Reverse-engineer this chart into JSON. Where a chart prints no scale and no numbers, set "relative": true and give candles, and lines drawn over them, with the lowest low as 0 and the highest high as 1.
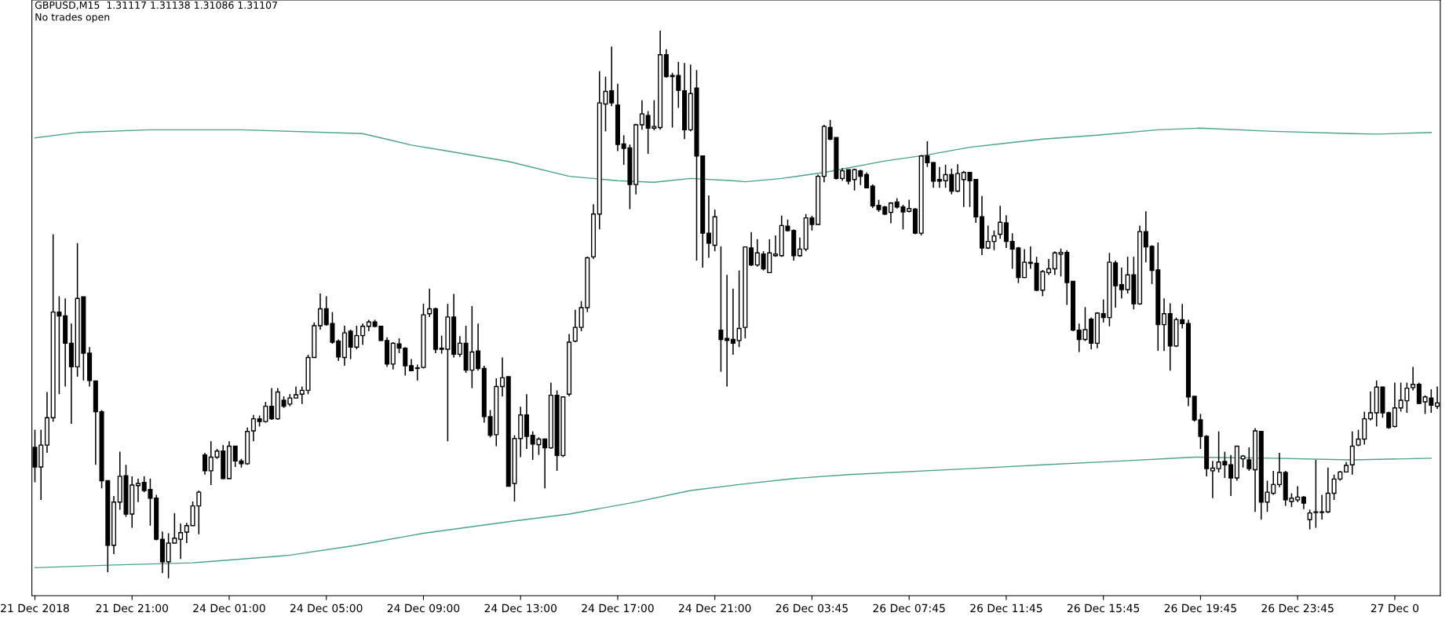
{
  "chart_data": {
    "type": "candlestick",
    "title": "GBPUSD,M15  1.31117 1.31138 1.31086 1.31107",
    "annotations": [
      "No trades open"
    ],
    "relative": true,
    "categories": [
      "21 Dec 2018",
      null,
      null,
      null,
      null,
      null,
      null,
      null,
      null,
      null,
      null,
      null,
      null,
      null,
      null,
      null,
      "21 Dec 21:00",
      null,
      null,
      null,
      null,
      null,
      null,
      null,
      null,
      null,
      null,
      null,
      null,
      null,
      null,
      null,
      "24 Dec 01:00",
      null,
      null,
      null,
      null,
      null,
      null,
      null,
      null,
      null,
      null,
      null,
      null,
      null,
      null,
      null,
      "24 Dec 05:00",
      null,
      null,
      null,
      null,
      null,
      null,
      null,
      null,
      null,
      null,
      null,
      null,
      null,
      null,
      null,
      "24 Dec 09:00",
      null,
      null,
      null,
      null,
      null,
      null,
      null,
      null,
      null,
      null,
      null,
      null,
      null,
      null,
      null,
      "24 Dec 13:00",
      null,
      null,
      null,
      null,
      null,
      null,
      null,
      null,
      null,
      null,
      null,
      null,
      null,
      null,
      null,
      "24 Dec 17:00",
      null,
      null,
      null,
      null,
      null,
      null,
      null,
      null,
      null,
      null,
      null,
      null,
      null,
      null,
      null,
      "24 Dec 21:00",
      null,
      null,
      null,
      null,
      null,
      null,
      null,
      null,
      null,
      null,
      null,
      null,
      null,
      null,
      null,
      "26 Dec 03:45",
      null,
      null,
      null,
      null,
      null,
      null,
      null,
      null,
      null,
      null,
      null,
      null,
      null,
      null,
      null,
      "26 Dec 07:45",
      null,
      null,
      null,
      null,
      null,
      null,
      null,
      null,
      null,
      null,
      null,
      null,
      null,
      null,
      null,
      "26 Dec 11:45",
      null,
      null,
      null,
      null,
      null,
      null,
      null,
      null,
      null,
      null,
      null,
      null,
      null,
      null,
      null,
      "26 Dec 15:45",
      null,
      null,
      null,
      null,
      null,
      null,
      null,
      null,
      null,
      null,
      null,
      null,
      null,
      null,
      null,
      "26 Dec 19:45",
      null,
      null,
      null,
      null,
      null,
      null,
      null,
      null,
      null,
      null,
      null,
      null,
      null,
      null,
      null,
      "26 Dec 23:45",
      null,
      null,
      null,
      null,
      null,
      null,
      null,
      null,
      null,
      null,
      null,
      null,
      null,
      null,
      null,
      "27 Dec 0",
      null,
      null,
      null,
      null,
      null,
      null,
      null
    ],
    "ohlc": [
      [
        0.239,
        0.271,
        0.175,
        0.203
      ],
      [
        0.203,
        0.271,
        0.143,
        0.243
      ],
      [
        0.243,
        0.34,
        0.229,
        0.293
      ],
      [
        0.293,
        0.628,
        0.286,
        0.486
      ],
      [
        0.486,
        0.515,
        0.336,
        0.479
      ],
      [
        0.479,
        0.511,
        0.35,
        0.429
      ],
      [
        0.429,
        0.465,
        0.282,
        0.386
      ],
      [
        0.386,
        0.612,
        0.368,
        0.511
      ],
      [
        0.514,
        0.514,
        0.361,
        0.411
      ],
      [
        0.411,
        0.422,
        0.35,
        0.361
      ],
      [
        0.36,
        0.36,
        0.207,
        0.304
      ],
      [
        0.304,
        0.307,
        0.164,
        0.178
      ],
      [
        0.178,
        0.178,
        0.011,
        0.06
      ],
      [
        0.06,
        0.15,
        0.044,
        0.139
      ],
      [
        0.139,
        0.231,
        0.125,
        0.186
      ],
      [
        0.187,
        0.207,
        0.112,
        0.117
      ],
      [
        0.117,
        0.186,
        0.092,
        0.17
      ],
      [
        0.169,
        0.182,
        0.139,
        0.173
      ],
      [
        0.175,
        0.186,
        0.157,
        0.16
      ],
      [
        0.162,
        0.182,
        0.096,
        0.146
      ],
      [
        0.146,
        0.152,
        0.069,
        0.071
      ],
      [
        0.071,
        0.085,
        0.009,
        0.03
      ],
      [
        0.03,
        0.082,
        0,
        0.064
      ],
      [
        0.064,
        0.119,
        0.064,
        0.073
      ],
      [
        0.071,
        0.1,
        0.035,
        0.083
      ],
      [
        0.084,
        0.101,
        0.064,
        0.096
      ],
      [
        0.096,
        0.14,
        0.096,
        0.132
      ],
      [
        0.132,
        0.16,
        0.08,
        0.157
      ],
      [
        0.225,
        0.229,
        0.189,
        0.196
      ],
      [
        0.196,
        0.25,
        0.17,
        0.221
      ],
      [
        0.221,
        0.236,
        0.218,
        0.232
      ],
      [
        0.232,
        0.243,
        0.181,
        0.182
      ],
      [
        0.182,
        0.25,
        0.181,
        0.241
      ],
      [
        0.241,
        0.241,
        0.203,
        0.214
      ],
      [
        0.214,
        0.218,
        0.202,
        0.209
      ],
      [
        0.209,
        0.275,
        0.207,
        0.268
      ],
      [
        0.269,
        0.298,
        0.25,
        0.291
      ],
      [
        0.291,
        0.297,
        0.277,
        0.286
      ],
      [
        0.286,
        0.322,
        0.284,
        0.314
      ],
      [
        0.314,
        0.347,
        0.289,
        0.291
      ],
      [
        0.291,
        0.347,
        0.289,
        0.34
      ],
      [
        0.325,
        0.332,
        0.311,
        0.314
      ],
      [
        0.318,
        0.336,
        0.314,
        0.329
      ],
      [
        0.329,
        0.35,
        0.329,
        0.335
      ],
      [
        0.336,
        0.35,
        0.318,
        0.343
      ],
      [
        0.343,
        0.408,
        0.336,
        0.403
      ],
      [
        0.403,
        0.467,
        0.403,
        0.461
      ],
      [
        0.461,
        0.52,
        0.454,
        0.492
      ],
      [
        0.492,
        0.515,
        0.461,
        0.463
      ],
      [
        0.465,
        0.486,
        0.428,
        0.431
      ],
      [
        0.433,
        0.436,
        0.397,
        0.404
      ],
      [
        0.403,
        0.461,
        0.388,
        0.448
      ],
      [
        0.451,
        0.454,
        0.4,
        0.422
      ],
      [
        0.422,
        0.461,
        0.418,
        0.443
      ],
      [
        0.443,
        0.465,
        0.426,
        0.46
      ],
      [
        0.46,
        0.472,
        0.451,
        0.468
      ],
      [
        0.468,
        0.472,
        0.458,
        0.46
      ],
      [
        0.46,
        0.461,
        0.433,
        0.434
      ],
      [
        0.434,
        0.44,
        0.386,
        0.391
      ],
      [
        0.391,
        0.431,
        0.381,
        0.429
      ],
      [
        0.428,
        0.438,
        0.411,
        0.42
      ],
      [
        0.42,
        0.422,
        0.37,
        0.388
      ],
      [
        0.388,
        0.4,
        0.379,
        0.379
      ],
      [
        0.383,
        0.39,
        0.361,
        0.384
      ],
      [
        0.385,
        0.501,
        0.383,
        0.481
      ],
      [
        0.483,
        0.529,
        0.477,
        0.492
      ],
      [
        0.492,
        0.494,
        0.411,
        0.418
      ],
      [
        0.418,
        0.443,
        0.41,
        0.42
      ],
      [
        0.418,
        0.501,
        0.25,
        0.477
      ],
      [
        0.477,
        0.519,
        0.403,
        0.409
      ],
      [
        0.409,
        0.442,
        0.404,
        0.429
      ],
      [
        0.429,
        0.461,
        0.375,
        0.38
      ],
      [
        0.38,
        0.497,
        0.347,
        0.413
      ],
      [
        0.415,
        0.465,
        0.379,
        0.383
      ],
      [
        0.383,
        0.388,
        0.284,
        0.295
      ],
      [
        0.295,
        0.307,
        0.257,
        0.261
      ],
      [
        0.262,
        0.365,
        0.241,
        0.35
      ],
      [
        0.35,
        0.403,
        0.332,
        0.366
      ],
      [
        0.368,
        0.368,
        0.168,
        0.168
      ],
      [
        0.173,
        0.261,
        0.14,
        0.255
      ],
      [
        0.255,
        0.313,
        0.221,
        0.298
      ],
      [
        0.298,
        0.336,
        0.236,
        0.259
      ],
      [
        0.261,
        0.268,
        0.216,
        0.245
      ],
      [
        0.244,
        0.257,
        0.225,
        0.254
      ],
      [
        0.254,
        0.255,
        0.164,
        0.238
      ],
      [
        0.238,
        0.357,
        0.236,
        0.334
      ],
      [
        0.334,
        0.343,
        0.196,
        0.224
      ],
      [
        0.224,
        0.332,
        0.221,
        0.331
      ],
      [
        0.336,
        0.446,
        0.332,
        0.431
      ],
      [
        0.433,
        0.49,
        0.431,
        0.458
      ],
      [
        0.458,
        0.506,
        0.451,
        0.494
      ],
      [
        0.494,
        0.587,
        0.486,
        0.585
      ],
      [
        0.587,
        0.683,
        0.583,
        0.665
      ],
      [
        0.665,
        0.926,
        0.637,
        0.868
      ],
      [
        0.866,
        0.916,
        0.816,
        0.889
      ],
      [
        0.89,
        0.971,
        0.862,
        0.868
      ],
      [
        0.864,
        0.903,
        0.78,
        0.792
      ],
      [
        0.793,
        0.809,
        0.755,
        0.785
      ],
      [
        0.786,
        0.792,
        0.674,
        0.719
      ],
      [
        0.719,
        0.83,
        0.701,
        0.828
      ],
      [
        0.828,
        0.873,
        0.819,
        0.848
      ],
      [
        0.845,
        0.853,
        0.775,
        0.822
      ],
      [
        0.822,
        0.873,
        0.818,
        0.825
      ],
      [
        0.823,
        1.0,
        0.819,
        0.956
      ],
      [
        0.956,
        0.966,
        0.914,
        0.916
      ],
      [
        0.916,
        0.923,
        0.823,
        0.918
      ],
      [
        0.918,
        0.943,
        0.859,
        0.891
      ],
      [
        0.89,
        0.941,
        0.802,
        0.819
      ],
      [
        0.819,
        0.938,
        0.816,
        0.885
      ],
      [
        0.895,
        0.928,
        0.58,
        0.771
      ],
      [
        0.771,
        0.771,
        0.567,
        0.63
      ],
      [
        0.63,
        0.699,
        0.585,
        0.612
      ],
      [
        0.608,
        0.673,
        0.597,
        0.66
      ],
      [
        0.453,
        0.606,
        0.377,
        0.436
      ],
      [
        0.438,
        0.554,
        0.35,
        0.434
      ],
      [
        0.436,
        0.529,
        0.408,
        0.429
      ],
      [
        0.434,
        0.562,
        0.422,
        0.456
      ],
      [
        0.458,
        0.605,
        0.438,
        0.605
      ],
      [
        0.603,
        0.632,
        0.57,
        0.572
      ],
      [
        0.572,
        0.619,
        0.569,
        0.594
      ],
      [
        0.592,
        0.597,
        0.562,
        0.565
      ],
      [
        0.558,
        0.619,
        0.558,
        0.594
      ],
      [
        0.589,
        0.626,
        0.587,
        0.592
      ],
      [
        0.589,
        0.662,
        0.587,
        0.644
      ],
      [
        0.643,
        0.655,
        0.633,
        0.635
      ],
      [
        0.635,
        0.637,
        0.58,
        0.589
      ],
      [
        0.589,
        0.622,
        0.587,
        0.601
      ],
      [
        0.601,
        0.665,
        0.597,
        0.658
      ],
      [
        0.658,
        0.662,
        0.635,
        0.646
      ],
      [
        0.646,
        0.737,
        0.646,
        0.734
      ],
      [
        0.734,
        0.828,
        0.723,
        0.825
      ],
      [
        0.823,
        0.837,
        0.8,
        0.802
      ],
      [
        0.805,
        0.805,
        0.728,
        0.73
      ],
      [
        0.73,
        0.749,
        0.726,
        0.744
      ],
      [
        0.746,
        0.746,
        0.719,
        0.725
      ],
      [
        0.728,
        0.748,
        0.708,
        0.746
      ],
      [
        0.744,
        0.746,
        0.718,
        0.734
      ],
      [
        0.737,
        0.741,
        0.712,
        0.713
      ],
      [
        0.716,
        0.719,
        0.676,
        0.68
      ],
      [
        0.681,
        0.691,
        0.669,
        0.673
      ],
      [
        0.678,
        0.68,
        0.663,
        0.665
      ],
      [
        0.668,
        0.687,
        0.648,
        0.685
      ],
      [
        0.687,
        0.694,
        0.675,
        0.678
      ],
      [
        0.678,
        0.682,
        0.637,
        0.669
      ],
      [
        0.67,
        0.691,
        0.668,
        0.675
      ],
      [
        0.674,
        0.676,
        0.628,
        0.63
      ],
      [
        0.63,
        0.773,
        0.626,
        0.771
      ],
      [
        0.771,
        0.798,
        0.751,
        0.759
      ],
      [
        0.759,
        0.76,
        0.713,
        0.725
      ],
      [
        0.728,
        0.751,
        0.713,
        0.725
      ],
      [
        0.726,
        0.755,
        0.713,
        0.737
      ],
      [
        0.737,
        0.748,
        0.701,
        0.707
      ],
      [
        0.707,
        0.756,
        0.705,
        0.739
      ],
      [
        0.728,
        0.744,
        0.678,
        0.741
      ],
      [
        0.741,
        0.742,
        0.678,
        0.726
      ],
      [
        0.728,
        0.728,
        0.649,
        0.66
      ],
      [
        0.66,
        0.698,
        0.59,
        0.603
      ],
      [
        0.603,
        0.644,
        0.601,
        0.615
      ],
      [
        0.615,
        0.635,
        0.599,
        0.625
      ],
      [
        0.628,
        0.68,
        0.62,
        0.65
      ],
      [
        0.649,
        0.663,
        0.603,
        0.615
      ],
      [
        0.615,
        0.63,
        0.565,
        0.601
      ],
      [
        0.603,
        0.605,
        0.539,
        0.549
      ],
      [
        0.549,
        0.601,
        0.548,
        0.577
      ],
      [
        0.575,
        0.606,
        0.565,
        0.577
      ],
      [
        0.575,
        0.587,
        0.524,
        0.526
      ],
      [
        0.526,
        0.563,
        0.515,
        0.56
      ],
      [
        0.558,
        0.583,
        0.554,
        0.565
      ],
      [
        0.565,
        0.597,
        0.554,
        0.594
      ],
      [
        0.592,
        0.602,
        0.551,
        0.595
      ],
      [
        0.595,
        0.599,
        0.499,
        0.54
      ],
      [
        0.542,
        0.542,
        0.451,
        0.453
      ],
      [
        0.453,
        0.465,
        0.413,
        0.436
      ],
      [
        0.436,
        0.495,
        0.433,
        0.454
      ],
      [
        0.473,
        0.476,
        0.418,
        0.429
      ],
      [
        0.429,
        0.486,
        0.42,
        0.484
      ],
      [
        0.483,
        0.509,
        0.467,
        0.476
      ],
      [
        0.476,
        0.594,
        0.46,
        0.577
      ],
      [
        0.576,
        0.58,
        0.494,
        0.534
      ],
      [
        0.536,
        0.567,
        0.511,
        0.527
      ],
      [
        0.527,
        0.587,
        0.52,
        0.554
      ],
      [
        0.554,
        0.587,
        0.491,
        0.501
      ],
      [
        0.501,
        0.644,
        0.499,
        0.633
      ],
      [
        0.633,
        0.67,
        0.577,
        0.605
      ],
      [
        0.606,
        0.608,
        0.537,
        0.562
      ],
      [
        0.563,
        0.613,
        0.415,
        0.463
      ],
      [
        0.463,
        0.511,
        0.415,
        0.483
      ],
      [
        0.483,
        0.502,
        0.379,
        0.424
      ],
      [
        0.424,
        0.476,
        0.422,
        0.472
      ],
      [
        0.472,
        0.501,
        0.456,
        0.465
      ],
      [
        0.465,
        0.472,
        0.314,
        0.331
      ],
      [
        0.332,
        0.332,
        0.286,
        0.289
      ],
      [
        0.289,
        0.3,
        0.236,
        0.259
      ],
      [
        0.259,
        0.261,
        0.186,
        0.2
      ],
      [
        0.196,
        0.214,
        0.146,
        0.201
      ],
      [
        0.2,
        0.268,
        0.193,
        0.212
      ],
      [
        0.213,
        0.231,
        0.183,
        0.207
      ],
      [
        0.207,
        0.225,
        0.15,
        0.183
      ],
      [
        0.183,
        0.241,
        0.178,
        0.241
      ],
      [
        0.218,
        0.225,
        0.202,
        0.223
      ],
      [
        0.216,
        0.239,
        0.196,
        0.2
      ],
      [
        0.198,
        0.274,
        0.121,
        0.269
      ],
      [
        0.268,
        0.268,
        0.107,
        0.139
      ],
      [
        0.139,
        0.178,
        0.121,
        0.157
      ],
      [
        0.155,
        0.196,
        0.152,
        0.171
      ],
      [
        0.171,
        0.229,
        0.166,
        0.193
      ],
      [
        0.193,
        0.196,
        0.132,
        0.143
      ],
      [
        0.14,
        0.155,
        0.13,
        0.146
      ],
      [
        0.143,
        0.168,
        0.139,
        0.148
      ],
      [
        0.148,
        0.15,
        0.126,
        0.137
      ],
      [
        0.107,
        0.125,
        0.089,
        0.119
      ],
      [
        0.12,
        0.216,
        0.092,
        0.121
      ],
      [
        0.12,
        0.152,
        0.107,
        0.121
      ],
      [
        0.121,
        0.202,
        0.119,
        0.155
      ],
      [
        0.155,
        0.189,
        0.143,
        0.181
      ],
      [
        0.181,
        0.196,
        0.178,
        0.194
      ],
      [
        0.194,
        0.212,
        0.193,
        0.206
      ],
      [
        0.207,
        0.268,
        0.189,
        0.241
      ],
      [
        0.243,
        0.271,
        0.241,
        0.254
      ],
      [
        0.254,
        0.304,
        0.244,
        0.291
      ],
      [
        0.291,
        0.341,
        0.288,
        0.302
      ],
      [
        0.302,
        0.361,
        0.277,
        0.349
      ],
      [
        0.349,
        0.35,
        0.293,
        0.302
      ],
      [
        0.302,
        0.304,
        0.273,
        0.275
      ],
      [
        0.277,
        0.357,
        0.275,
        0.311
      ],
      [
        0.311,
        0.357,
        0.304,
        0.325
      ],
      [
        0.324,
        0.357,
        0.302,
        0.347
      ],
      [
        0.348,
        0.386,
        0.343,
        0.354
      ],
      [
        0.354,
        0.357,
        0.318,
        0.319
      ],
      [
        0.322,
        0.334,
        0.3,
        0.331
      ],
      [
        0.329,
        0.345,
        0.302,
        0.316
      ],
      [
        0.314,
        0.35,
        0.309,
        0.32
      ]
    ],
    "series": [
      {
        "type": "line",
        "color": "#4aa383",
        "values": [
          0.804,
          null,
          null,
          null,
          null,
          null,
          null,
          0.814,
          null,
          null,
          null,
          null,
          null,
          null,
          null,
          null,
          null,
          null,
          null,
          0.819,
          null,
          null,
          null,
          null,
          null,
          null,
          null,
          null,
          null,
          null,
          null,
          null,
          null,
          null,
          0.819,
          null,
          null,
          null,
          null,
          null,
          null,
          null,
          null,
          null,
          null,
          null,
          null,
          null,
          null,
          null,
          null,
          null,
          null,
          null,
          0.812,
          null,
          null,
          null,
          null,
          null,
          null,
          null,
          0.791,
          null,
          null,
          null,
          null,
          null,
          0.78,
          null,
          null,
          null,
          null,
          null,
          null,
          null,
          null,
          null,
          0.761,
          null,
          null,
          null,
          null,
          null,
          null,
          null,
          null,
          null,
          0.734,
          null,
          null,
          null,
          null,
          null,
          null,
          null,
          0.726,
          null,
          null,
          null,
          null,
          null,
          0.723,
          null,
          null,
          null,
          null,
          null,
          0.73,
          null,
          null,
          null,
          null,
          null,
          null,
          0.726,
          null,
          0.724,
          null,
          null,
          null,
          null,
          null,
          0.73,
          null,
          null,
          null,
          null,
          null,
          null,
          0.741,
          null,
          null,
          null,
          null,
          null,
          null,
          null,
          null,
          null,
          0.762,
          null,
          null,
          null,
          null,
          null,
          null,
          0.773,
          null,
          null,
          null,
          null,
          null,
          null,
          0.787,
          null,
          null,
          null,
          null,
          null,
          null,
          null,
          null,
          null,
          null,
          null,
          0.802,
          null,
          null,
          null,
          null,
          null,
          null,
          null,
          null,
          0.809,
          null,
          null,
          null,
          null,
          null,
          null,
          null,
          null,
          null,
          0.819,
          null,
          null,
          null,
          null,
          null,
          null,
          0.822,
          null,
          null,
          null,
          null,
          null,
          null,
          null,
          null,
          null,
          null,
          null,
          0.816,
          null,
          null,
          null,
          null,
          null,
          null,
          null,
          null,
          null,
          null,
          null,
          null,
          0.812,
          null,
          null,
          null,
          0.811,
          null,
          null,
          null,
          null,
          null,
          null,
          null,
          null,
          0.814,
          null
        ]
      },
      {
        "type": "line",
        "color": "#4aa383",
        "values": [
          0.019,
          null,
          null,
          null,
          null,
          null,
          null,
          null,
          null,
          null,
          null,
          null,
          null,
          0.024,
          null,
          null,
          null,
          null,
          null,
          null,
          null,
          null,
          null,
          null,
          null,
          null,
          0.028,
          null,
          null,
          null,
          null,
          null,
          null,
          null,
          null,
          null,
          null,
          null,
          null,
          null,
          0.04,
          null,
          0.042,
          null,
          null,
          null,
          null,
          null,
          null,
          null,
          null,
          null,
          null,
          0.06,
          null,
          null,
          null,
          null,
          null,
          null,
          null,
          null,
          null,
          null,
          0.082,
          null,
          null,
          null,
          null,
          null,
          null,
          null,
          null,
          null,
          null,
          null,
          null,
          null,
          0.103,
          null,
          null,
          null,
          null,
          null,
          null,
          null,
          null,
          null,
          0.117,
          null,
          null,
          null,
          null,
          null,
          null,
          null,
          null,
          null,
          null,
          0.139,
          null,
          null,
          null,
          null,
          null,
          null,
          null,
          null,
          0.16,
          null,
          null,
          null,
          null,
          null,
          null,
          null,
          0.171,
          null,
          null,
          null,
          null,
          null,
          null,
          null,
          null,
          0.182,
          null,
          null,
          null,
          null,
          null,
          null,
          null,
          null,
          0.189,
          null,
          null,
          null,
          null,
          null,
          null,
          null,
          null,
          null,
          null,
          null,
          null,
          null,
          null,
          null,
          null,
          null,
          null,
          null,
          0.2,
          null,
          null,
          null,
          null,
          null,
          null,
          null,
          null,
          null,
          null,
          null,
          0.207,
          null,
          null,
          null,
          null,
          null,
          null,
          null,
          null,
          null,
          null,
          null,
          null,
          0.214,
          null,
          null,
          null,
          null,
          null,
          null,
          null,
          null,
          null,
          null,
          null,
          0.221,
          null,
          null,
          null,
          null,
          null,
          null,
          null,
          null,
          null,
          null,
          null,
          null,
          0.219,
          null,
          null,
          null,
          null,
          null,
          null,
          null,
          null,
          null,
          null,
          null,
          null,
          0.216,
          null,
          null,
          null,
          null,
          null,
          null,
          null,
          null,
          null,
          null,
          null,
          null,
          0.219,
          null
        ]
      }
    ]
  }
}
